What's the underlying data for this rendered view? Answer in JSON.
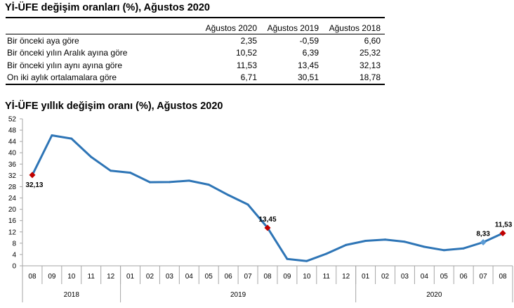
{
  "table": {
    "title": "Yİ-ÜFE değişim oranları (%), Ağustos 2020",
    "columns": [
      "",
      "Ağustos 2020",
      "Ağustos 2019",
      "Ağustos 2018"
    ],
    "rows": [
      {
        "label": "Bir önceki aya göre",
        "values": [
          "2,35",
          "-0,59",
          "6,60"
        ]
      },
      {
        "label": "Bir önceki yılın Aralık ayına göre",
        "values": [
          "10,52",
          "6,39",
          "25,32"
        ]
      },
      {
        "label": "Bir önceki yılın aynı ayına göre",
        "values": [
          "11,53",
          "13,45",
          "32,13"
        ]
      },
      {
        "label": "On iki aylık ortalamalara göre",
        "values": [
          "6,71",
          "30,51",
          "18,78"
        ]
      }
    ]
  },
  "chart_data": {
    "type": "line",
    "title": "Yİ-ÜFE yıllık değişim oranı (%), Ağustos 2020",
    "xlabel": "",
    "ylabel": "",
    "ylim": [
      0,
      52
    ],
    "yticks": [
      0,
      4,
      8,
      12,
      16,
      20,
      24,
      28,
      32,
      36,
      40,
      44,
      48,
      52
    ],
    "grid": false,
    "legend": "none",
    "categories": [
      "08",
      "09",
      "10",
      "11",
      "12",
      "01",
      "02",
      "03",
      "04",
      "05",
      "06",
      "07",
      "08",
      "09",
      "10",
      "11",
      "12",
      "01",
      "02",
      "03",
      "04",
      "05",
      "06",
      "07",
      "08"
    ],
    "year_groups": [
      {
        "label": "2018",
        "count": 5
      },
      {
        "label": "2019",
        "count": 12
      },
      {
        "label": "2020",
        "count": 8
      }
    ],
    "series": [
      {
        "name": "Yİ-ÜFE yıllık değişim oranı",
        "color": "#2e75b6",
        "values": [
          32.13,
          46.15,
          45.01,
          38.54,
          33.64,
          32.93,
          29.59,
          29.64,
          30.12,
          28.71,
          25.04,
          21.66,
          13.45,
          2.45,
          1.7,
          4.26,
          7.36,
          8.84,
          9.26,
          8.5,
          6.71,
          5.53,
          6.17,
          8.33,
          11.53
        ]
      }
    ],
    "annotations": [
      {
        "index": 0,
        "label": "32,13",
        "marker_color": "#c00000",
        "position": "below"
      },
      {
        "index": 12,
        "label": "13,45",
        "marker_color": "#c00000",
        "position": "above"
      },
      {
        "index": 23,
        "label": "8,33",
        "marker_color": "#5b9bd5",
        "position": "above"
      },
      {
        "index": 24,
        "label": "11,53",
        "marker_color": "#c00000",
        "position": "above"
      }
    ]
  }
}
